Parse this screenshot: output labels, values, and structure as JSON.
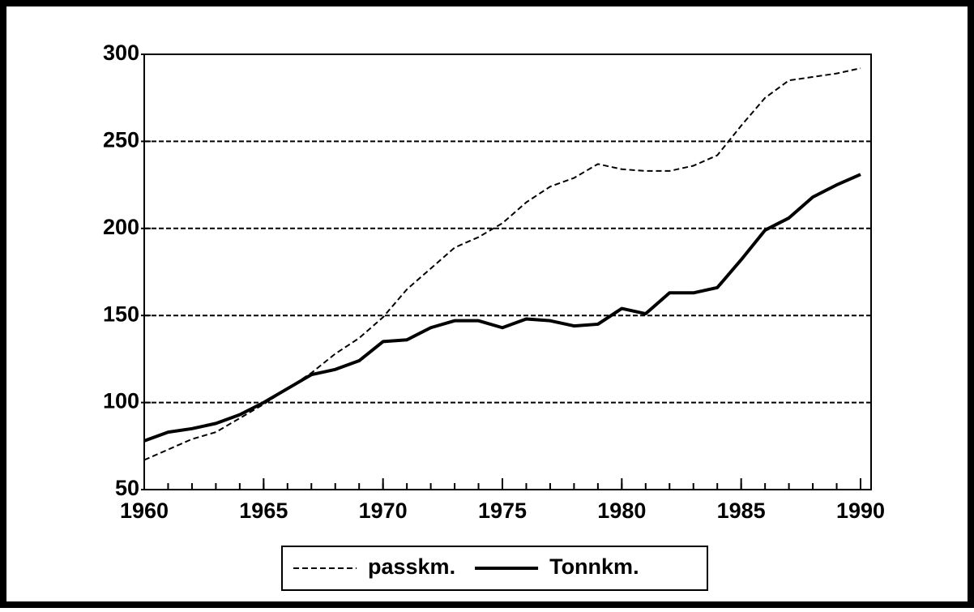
{
  "chart_data": {
    "type": "line",
    "x": [
      1960,
      1961,
      1962,
      1963,
      1964,
      1965,
      1966,
      1967,
      1968,
      1969,
      1970,
      1971,
      1972,
      1973,
      1974,
      1975,
      1976,
      1977,
      1978,
      1979,
      1980,
      1981,
      1982,
      1983,
      1984,
      1985,
      1986,
      1987,
      1988,
      1989,
      1990
    ],
    "series": [
      {
        "name": "passkm.",
        "color": "#000000",
        "style": "dashed",
        "width": 2,
        "values": [
          67,
          73,
          79,
          83,
          91,
          99,
          108,
          117,
          128,
          137,
          149,
          165,
          177,
          189,
          195,
          203,
          215,
          224,
          229,
          237,
          234,
          233,
          233,
          236,
          242,
          259,
          275,
          285,
          287,
          289,
          292
        ]
      },
      {
        "name": "Tonnkm.",
        "color": "#000000",
        "style": "solid",
        "width": 4,
        "values": [
          78,
          83,
          85,
          88,
          93,
          100,
          108,
          116,
          119,
          124,
          135,
          136,
          143,
          147,
          147,
          143,
          148,
          147,
          144,
          145,
          154,
          151,
          163,
          163,
          166,
          182,
          199,
          206,
          218,
          225,
          231
        ]
      }
    ],
    "xlim": [
      1960,
      1990
    ],
    "xticks": [
      1960,
      1965,
      1970,
      1975,
      1980,
      1985,
      1990
    ],
    "ylim": [
      50,
      300
    ],
    "yticks": [
      50,
      100,
      150,
      200,
      250,
      300
    ],
    "grid": true,
    "legend": "bottom"
  }
}
